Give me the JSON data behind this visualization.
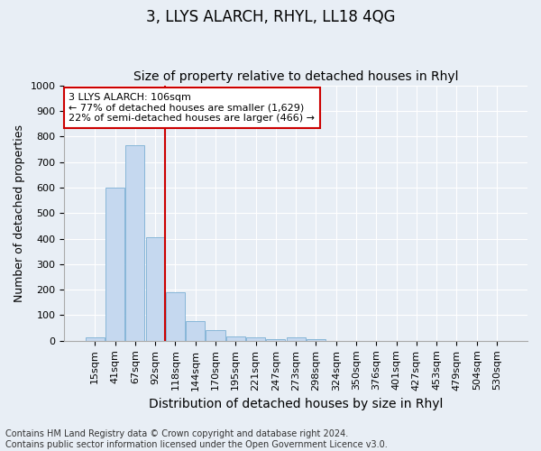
{
  "title": "3, LLYS ALARCH, RHYL, LL18 4QG",
  "subtitle": "Size of property relative to detached houses in Rhyl",
  "xlabel": "Distribution of detached houses by size in Rhyl",
  "ylabel": "Number of detached properties",
  "bar_labels": [
    "15sqm",
    "41sqm",
    "67sqm",
    "92sqm",
    "118sqm",
    "144sqm",
    "170sqm",
    "195sqm",
    "221sqm",
    "247sqm",
    "273sqm",
    "298sqm",
    "324sqm",
    "350sqm",
    "376sqm",
    "401sqm",
    "427sqm",
    "453sqm",
    "479sqm",
    "504sqm",
    "530sqm"
  ],
  "bar_values": [
    15,
    600,
    765,
    405,
    190,
    78,
    40,
    18,
    15,
    5,
    13,
    7,
    0,
    0,
    0,
    0,
    0,
    0,
    0,
    0,
    0
  ],
  "bar_color": "#c5d8ef",
  "bar_edgecolor": "#7aafd4",
  "vline_x": 3.5,
  "vline_color": "#cc0000",
  "ylim": [
    0,
    1000
  ],
  "yticks": [
    0,
    100,
    200,
    300,
    400,
    500,
    600,
    700,
    800,
    900,
    1000
  ],
  "annotation_text": "3 LLYS ALARCH: 106sqm\n← 77% of detached houses are smaller (1,629)\n22% of semi-detached houses are larger (466) →",
  "annotation_box_color": "#ffffff",
  "annotation_box_edgecolor": "#cc0000",
  "footnote": "Contains HM Land Registry data © Crown copyright and database right 2024.\nContains public sector information licensed under the Open Government Licence v3.0.",
  "background_color": "#e8eef5",
  "plot_background_color": "#e8eef5",
  "grid_color": "#ffffff",
  "title_fontsize": 12,
  "subtitle_fontsize": 10,
  "xlabel_fontsize": 10,
  "ylabel_fontsize": 9,
  "tick_fontsize": 8,
  "annotation_fontsize": 8,
  "footnote_fontsize": 7
}
